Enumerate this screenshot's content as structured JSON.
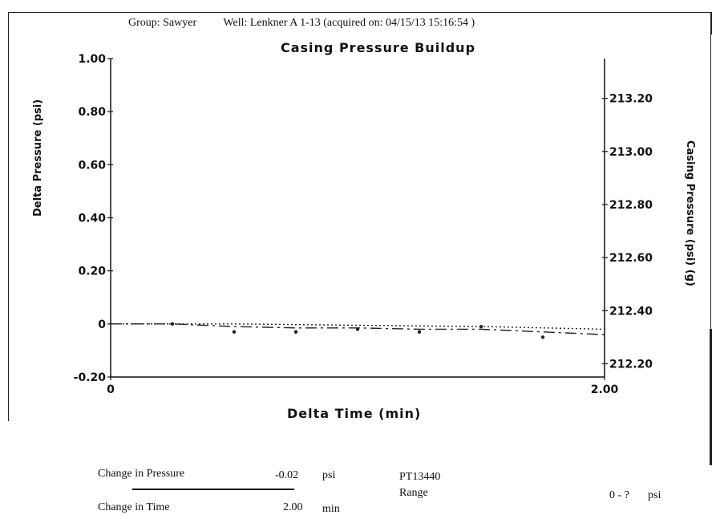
{
  "header": {
    "group": "Group: Sawyer",
    "well": "Well: Lenkner A 1-13 (acquired on: 04/15/13 15:16:54 )"
  },
  "chart_data": {
    "type": "line",
    "title": "Casing Pressure Buildup",
    "xlabel": "Delta Time (min)",
    "ylabel_left": "Delta Pressure (psi)",
    "ylabel_right": "Casing Pressure (psi) (g)",
    "xlim": [
      0,
      2.0
    ],
    "ylim_left": [
      -0.2,
      1.0
    ],
    "ylim_right": [
      212.15,
      213.35
    ],
    "x_ticks": [
      "0",
      "2.00"
    ],
    "y_ticks_left": [
      "1.00",
      "0.80",
      "0.60",
      "0.40",
      "0.20",
      "0",
      "-0.20"
    ],
    "y_ticks_right": [
      "213.20",
      "213.00",
      "212.80",
      "212.60",
      "212.40",
      "212.20"
    ],
    "grid": false,
    "series": [
      {
        "style": "dash-dot",
        "x": [
          0,
          0.25,
          0.5,
          0.75,
          1.0,
          1.25,
          1.5,
          1.75,
          2.0
        ],
        "y": [
          0,
          0,
          -0.01,
          -0.015,
          -0.015,
          -0.02,
          -0.02,
          -0.03,
          -0.04
        ]
      },
      {
        "style": "dotted",
        "x": [
          0,
          0.5,
          1.0,
          1.5,
          2.0
        ],
        "y": [
          0,
          0,
          -0.005,
          -0.01,
          -0.02
        ]
      },
      {
        "style": "points",
        "x": [
          0.25,
          0.5,
          0.75,
          1.0,
          1.25,
          1.5,
          1.75
        ],
        "y": [
          0,
          -0.03,
          -0.03,
          -0.02,
          -0.03,
          -0.01,
          -0.05
        ]
      }
    ]
  },
  "footer": {
    "change_pressure_label": "Change in Pressure",
    "change_pressure_value": "-0.02",
    "change_pressure_unit": "psi",
    "change_time_label": "Change in Time",
    "change_time_value": "2.00",
    "change_time_unit": "min",
    "gauge_id": "PT13440",
    "range_label": "Range",
    "range_value": "0 - ?",
    "range_unit": "psi"
  }
}
